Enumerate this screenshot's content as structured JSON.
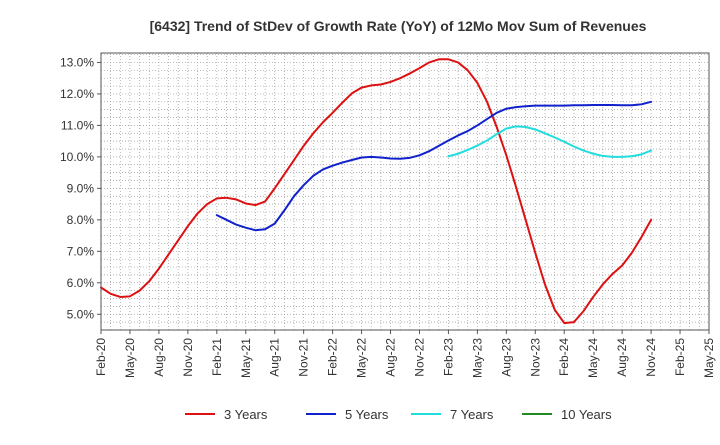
{
  "chart_data": {
    "type": "line",
    "title": "[6432]  Trend of StDev of Growth Rate (YoY) of 12Mo Mov Sum of Revenues",
    "xlabel": "",
    "ylabel": "",
    "ylim": [
      4.5,
      13.3
    ],
    "y_ticks": [
      5.0,
      6.0,
      7.0,
      8.0,
      9.0,
      10.0,
      11.0,
      12.0,
      13.0
    ],
    "y_tick_labels": [
      "5.0%",
      "6.0%",
      "7.0%",
      "8.0%",
      "9.0%",
      "10.0%",
      "11.0%",
      "12.0%",
      "13.0%"
    ],
    "x_tick_labels": [
      "Feb-20",
      "May-20",
      "Aug-20",
      "Nov-20",
      "Feb-21",
      "May-21",
      "Aug-21",
      "Nov-21",
      "Feb-22",
      "May-22",
      "Aug-22",
      "Nov-22",
      "Feb-23",
      "May-23",
      "Aug-23",
      "Nov-23",
      "Feb-24",
      "May-24",
      "Aug-24",
      "Nov-24",
      "Feb-25",
      "May-25"
    ],
    "x_month_count": 64,
    "grid": true,
    "legend_position": "bottom",
    "series": [
      {
        "name": "3 Years",
        "color": "#dd1111",
        "start_index": 0,
        "values": [
          5.85,
          5.65,
          5.55,
          5.57,
          5.75,
          6.05,
          6.45,
          6.9,
          7.35,
          7.8,
          8.2,
          8.5,
          8.68,
          8.7,
          8.65,
          8.52,
          8.47,
          8.58,
          9.0,
          9.45,
          9.9,
          10.35,
          10.75,
          11.1,
          11.4,
          11.72,
          12.02,
          12.2,
          12.27,
          12.3,
          12.38,
          12.5,
          12.65,
          12.82,
          13.0,
          13.1,
          13.1,
          13.0,
          12.75,
          12.35,
          11.75,
          10.95,
          10.05,
          9.05,
          8.0,
          6.95,
          5.95,
          5.15,
          4.72,
          4.75,
          5.1,
          5.55,
          5.95,
          6.28,
          6.55,
          6.95,
          7.45,
          8.0
        ]
      },
      {
        "name": "5 Years",
        "color": "#1122cc",
        "start_index": 12,
        "values": [
          8.15,
          8.0,
          7.85,
          7.75,
          7.67,
          7.7,
          7.88,
          8.3,
          8.75,
          9.1,
          9.4,
          9.6,
          9.72,
          9.82,
          9.9,
          9.98,
          10.0,
          9.98,
          9.95,
          9.94,
          9.97,
          10.05,
          10.18,
          10.35,
          10.52,
          10.68,
          10.82,
          11.0,
          11.2,
          11.4,
          11.53,
          11.58,
          11.61,
          11.63,
          11.63,
          11.63,
          11.63,
          11.64,
          11.64,
          11.65,
          11.65,
          11.65,
          11.64,
          11.64,
          11.67,
          11.75
        ]
      },
      {
        "name": "7 Years",
        "color": "#22dddd",
        "start_index": 36,
        "values": [
          10.02,
          10.1,
          10.22,
          10.36,
          10.52,
          10.72,
          10.9,
          10.97,
          10.95,
          10.87,
          10.75,
          10.62,
          10.48,
          10.33,
          10.2,
          10.1,
          10.03,
          10.0,
          10.0,
          10.02,
          10.08,
          10.2
        ]
      },
      {
        "name": "10 Years",
        "color": "#228822",
        "start_index": 0,
        "values": []
      }
    ]
  }
}
